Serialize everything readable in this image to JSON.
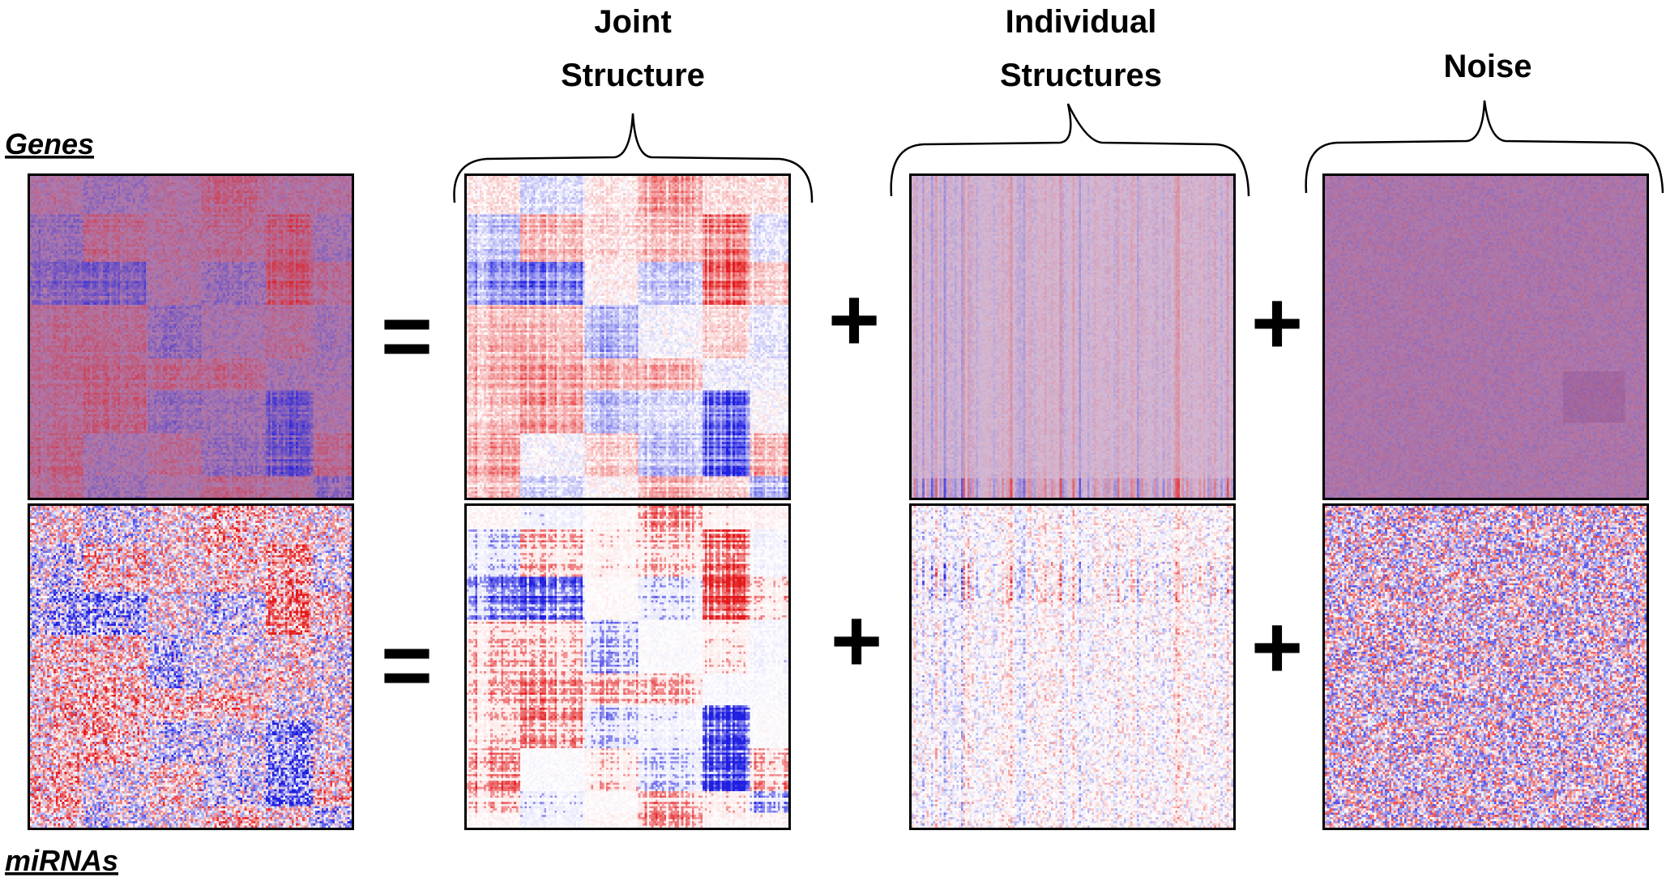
{
  "labels": {
    "genes": "Genes",
    "mirnas": "miRNAs"
  },
  "titles": {
    "joint_line1": "Joint",
    "joint_line2": "Structure",
    "individual_line1": "Individual",
    "individual_line2": "Structures",
    "noise": "Noise"
  },
  "operators": {
    "equals": "=",
    "plus": "+"
  },
  "colors": {
    "positive": "#e31a1c",
    "negative": "#1f1fe0",
    "neutral": "#ffffff",
    "noise_base": "#a0649e"
  },
  "panels": [
    {
      "row": "genes",
      "component": "data"
    },
    {
      "row": "genes",
      "component": "joint"
    },
    {
      "row": "genes",
      "component": "individual"
    },
    {
      "row": "genes",
      "component": "noise"
    },
    {
      "row": "mirnas",
      "component": "data"
    },
    {
      "row": "mirnas",
      "component": "joint"
    },
    {
      "row": "mirnas",
      "component": "individual"
    },
    {
      "row": "mirnas",
      "component": "noise"
    }
  ]
}
